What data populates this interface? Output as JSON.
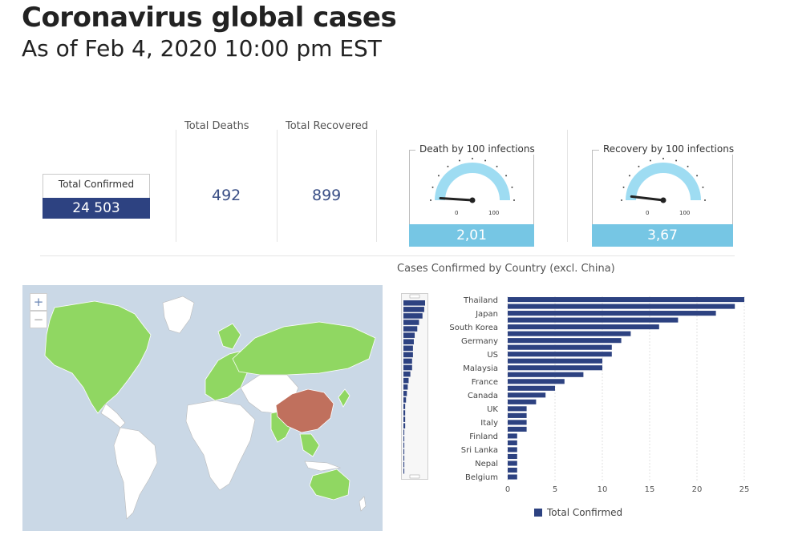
{
  "header": {
    "title": "Coronavirus global cases",
    "subtitle": "As of Feb 4, 2020 10:00 pm EST"
  },
  "kpis": {
    "confirmed": {
      "label": "Total Confirmed",
      "value": "24 503"
    },
    "deaths": {
      "label": "Total Deaths",
      "value": "492"
    },
    "recovered": {
      "label": "Total Recovered",
      "value": "899"
    }
  },
  "gauges": {
    "death": {
      "title": "Death by 100 infections",
      "value": "2,01",
      "min": "0",
      "max": "100",
      "level": 2.01
    },
    "recovery": {
      "title": "Recovery by 100 infections",
      "value": "3,67",
      "min": "0",
      "max": "100",
      "level": 3.67
    }
  },
  "map": {
    "zoom_in": "+",
    "zoom_out": "−",
    "colors": {
      "water": "#cad8e6",
      "land": "#ffffff",
      "affected": "#90d762",
      "china": "#c0705d"
    }
  },
  "colors": {
    "bar": "#2d4281",
    "gauge_fill": "#76c6e4",
    "kpi_fill": "#2d4281"
  },
  "chart_data": {
    "type": "bar",
    "orientation": "horizontal",
    "title": "Cases Confirmed by Country (excl. China)",
    "xlim": [
      0,
      25
    ],
    "xticks": [
      "0",
      "5",
      "10",
      "15",
      "20",
      "25"
    ],
    "grid": true,
    "legend_position": "bottom",
    "labeled_categories": [
      "Thailand",
      "Japan",
      "South Korea",
      "Germany",
      "US",
      "Malaysia",
      "France",
      "Canada",
      "UK",
      "Italy",
      "Finland",
      "Sri Lanka",
      "Nepal",
      "Belgium"
    ],
    "series": [
      {
        "name": "Total Confirmed",
        "values": [
          25,
          24,
          22,
          18,
          16,
          13,
          12,
          11,
          11,
          10,
          10,
          8,
          6,
          5,
          4,
          3,
          2,
          2,
          2,
          2,
          1,
          1,
          1,
          1,
          1,
          1,
          1
        ]
      }
    ]
  }
}
